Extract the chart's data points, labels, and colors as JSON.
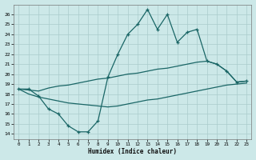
{
  "xlabel": "Humidex (Indice chaleur)",
  "bg_color": "#cce8e8",
  "grid_color": "#aacccc",
  "line_color": "#1a6666",
  "ylim": [
    13.5,
    27.0
  ],
  "xlim": [
    -0.5,
    23.5
  ],
  "yticks": [
    14,
    15,
    16,
    17,
    18,
    19,
    20,
    21,
    22,
    23,
    24,
    25,
    26
  ],
  "xticks": [
    0,
    1,
    2,
    3,
    4,
    5,
    6,
    7,
    8,
    9,
    10,
    11,
    12,
    13,
    14,
    15,
    16,
    17,
    18,
    19,
    20,
    21,
    22,
    23
  ],
  "curve_main_x": [
    0,
    1,
    2,
    3,
    4,
    5,
    6,
    7,
    8,
    9,
    10,
    11,
    12,
    13,
    14,
    15,
    16,
    17,
    18,
    19,
    20,
    21,
    22,
    23
  ],
  "curve_main_y": [
    18.5,
    18.5,
    17.8,
    16.5,
    16.0,
    14.8,
    14.2,
    14.2,
    15.3,
    19.7,
    22.0,
    24.0,
    25.0,
    26.5,
    24.5,
    26.0,
    23.2,
    24.2,
    24.5,
    21.3,
    21.0,
    20.3,
    19.2,
    19.3
  ],
  "curve_upper_x": [
    0,
    1,
    2,
    3,
    4,
    5,
    6,
    7,
    8,
    9,
    10,
    11,
    12,
    13,
    14,
    15,
    16,
    17,
    18,
    19,
    20,
    21,
    22,
    23
  ],
  "curve_upper_y": [
    18.5,
    18.4,
    18.3,
    18.6,
    18.8,
    18.9,
    19.1,
    19.3,
    19.5,
    19.6,
    19.8,
    20.0,
    20.1,
    20.3,
    20.5,
    20.6,
    20.8,
    21.0,
    21.2,
    21.3,
    21.0,
    20.3,
    19.2,
    19.3
  ],
  "curve_lower_x": [
    0,
    1,
    2,
    3,
    4,
    5,
    6,
    7,
    8,
    9,
    10,
    11,
    12,
    13,
    14,
    15,
    16,
    17,
    18,
    19,
    20,
    21,
    22,
    23
  ],
  "curve_lower_y": [
    18.5,
    18.0,
    17.7,
    17.5,
    17.3,
    17.1,
    17.0,
    16.9,
    16.8,
    16.7,
    16.8,
    17.0,
    17.2,
    17.4,
    17.5,
    17.7,
    17.9,
    18.1,
    18.3,
    18.5,
    18.7,
    18.9,
    19.0,
    19.1
  ]
}
